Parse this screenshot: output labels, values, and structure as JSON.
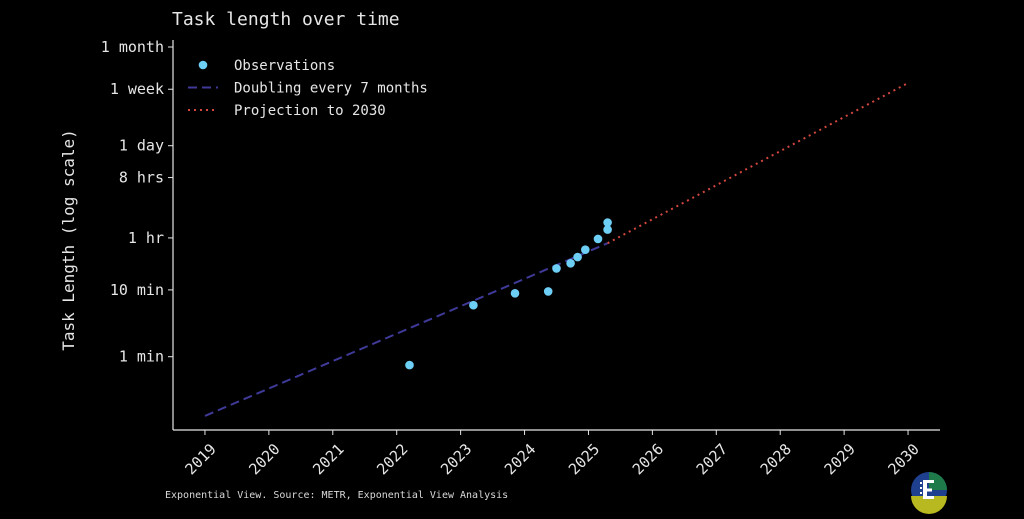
{
  "chart_data": {
    "type": "scatter",
    "title": "Task length over time",
    "ylabel": "Task Length (log scale)",
    "xlabel": "",
    "y_scale": "log",
    "y_unit": "minutes",
    "xlim": [
      2018.5,
      2030.5
    ],
    "ylim_minutes": [
      0.08,
      55000
    ],
    "x_ticks": [
      {
        "value": 2019,
        "label": "2019"
      },
      {
        "value": 2020,
        "label": "2020"
      },
      {
        "value": 2021,
        "label": "2021"
      },
      {
        "value": 2022,
        "label": "2022"
      },
      {
        "value": 2023,
        "label": "2023"
      },
      {
        "value": 2024,
        "label": "2024"
      },
      {
        "value": 2025,
        "label": "2025"
      },
      {
        "value": 2026,
        "label": "2026"
      },
      {
        "value": 2027,
        "label": "2027"
      },
      {
        "value": 2028,
        "label": "2028"
      },
      {
        "value": 2029,
        "label": "2029"
      },
      {
        "value": 2030,
        "label": "2030"
      }
    ],
    "y_ticks": [
      {
        "value": 1,
        "label": "1 min"
      },
      {
        "value": 10,
        "label": "10 min"
      },
      {
        "value": 60,
        "label": "1 hr"
      },
      {
        "value": 480,
        "label": "8 hrs"
      },
      {
        "value": 1440,
        "label": "1 day"
      },
      {
        "value": 10080,
        "label": "1 week"
      },
      {
        "value": 43200,
        "label": "1 month"
      }
    ],
    "series": [
      {
        "name": "Observations",
        "kind": "scatter",
        "color": "#6ecff6",
        "x": [
          2022.2,
          2023.2,
          2023.85,
          2024.37,
          2024.5,
          2024.72,
          2024.83,
          2024.95,
          2025.15,
          2025.3,
          2025.3
        ],
        "y": [
          0.75,
          5.9,
          8.9,
          9.5,
          21,
          25,
          31,
          40,
          58,
          80,
          102
        ]
      },
      {
        "name": "Doubling every 7 months",
        "kind": "line",
        "style": "dashed",
        "color": "#3f3a99",
        "x": [
          2019.0,
          2025.3
        ],
        "y": [
          0.13,
          50
        ]
      },
      {
        "name": "Projection to 2030",
        "kind": "line",
        "style": "dotted",
        "color": "#d4473f",
        "x": [
          2025.3,
          2030.0
        ],
        "y": [
          50,
          12500
        ]
      }
    ],
    "legend_position": "top-left",
    "grid": false
  },
  "footer": {
    "source": "Exponential View. Source: METR, Exponential View Analysis"
  },
  "logo": {
    "name": "exponential-view-logo",
    "colors": [
      "#1f3f8f",
      "#1f7a4a",
      "#b8b820"
    ]
  }
}
